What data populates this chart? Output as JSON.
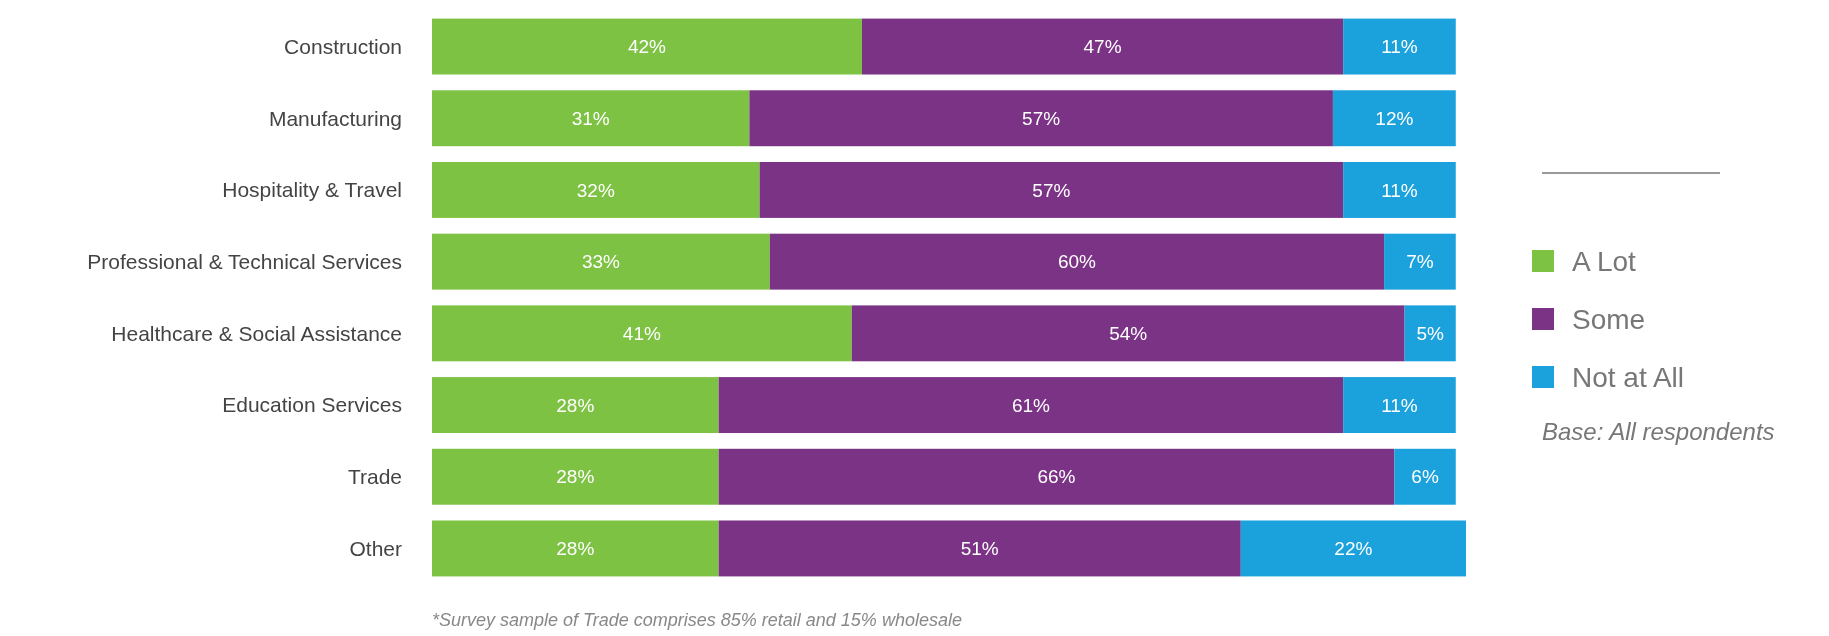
{
  "chart_data": {
    "type": "bar",
    "orientation": "horizontal",
    "stacked": true,
    "legend": "right",
    "categories": [
      "Construction",
      "Manufacturing",
      "Hospitality & Travel",
      "Professional & Technical Services",
      "Healthcare & Social Assistance",
      "Education Services",
      "Trade",
      "Other"
    ],
    "series": [
      {
        "name": "A Lot",
        "color": "#7dc243",
        "values": [
          42,
          31,
          32,
          33,
          41,
          28,
          28,
          28
        ],
        "value_labels": [
          "42%",
          "31%",
          "32%",
          "33%",
          "41%",
          "28%",
          "28%",
          "28%"
        ]
      },
      {
        "name": "Some",
        "color": "#7b3385",
        "values": [
          47,
          57,
          57,
          60,
          54,
          61,
          66,
          51
        ],
        "value_labels": [
          "47%",
          "57%",
          "57%",
          "60%",
          "54%",
          "61%",
          "66%",
          "51%"
        ]
      },
      {
        "name": "Not at All",
        "color": "#1ba1dc",
        "values": [
          11,
          12,
          11,
          7,
          5,
          11,
          6,
          22
        ],
        "value_labels": [
          "11%",
          "12%",
          "11%",
          "7%",
          "5%",
          "11%",
          "6%",
          "22%"
        ]
      }
    ],
    "annotations": [
      "Base: All respondents",
      "*Survey sample of Trade comprises 85% retail and 15% wholesale"
    ]
  }
}
